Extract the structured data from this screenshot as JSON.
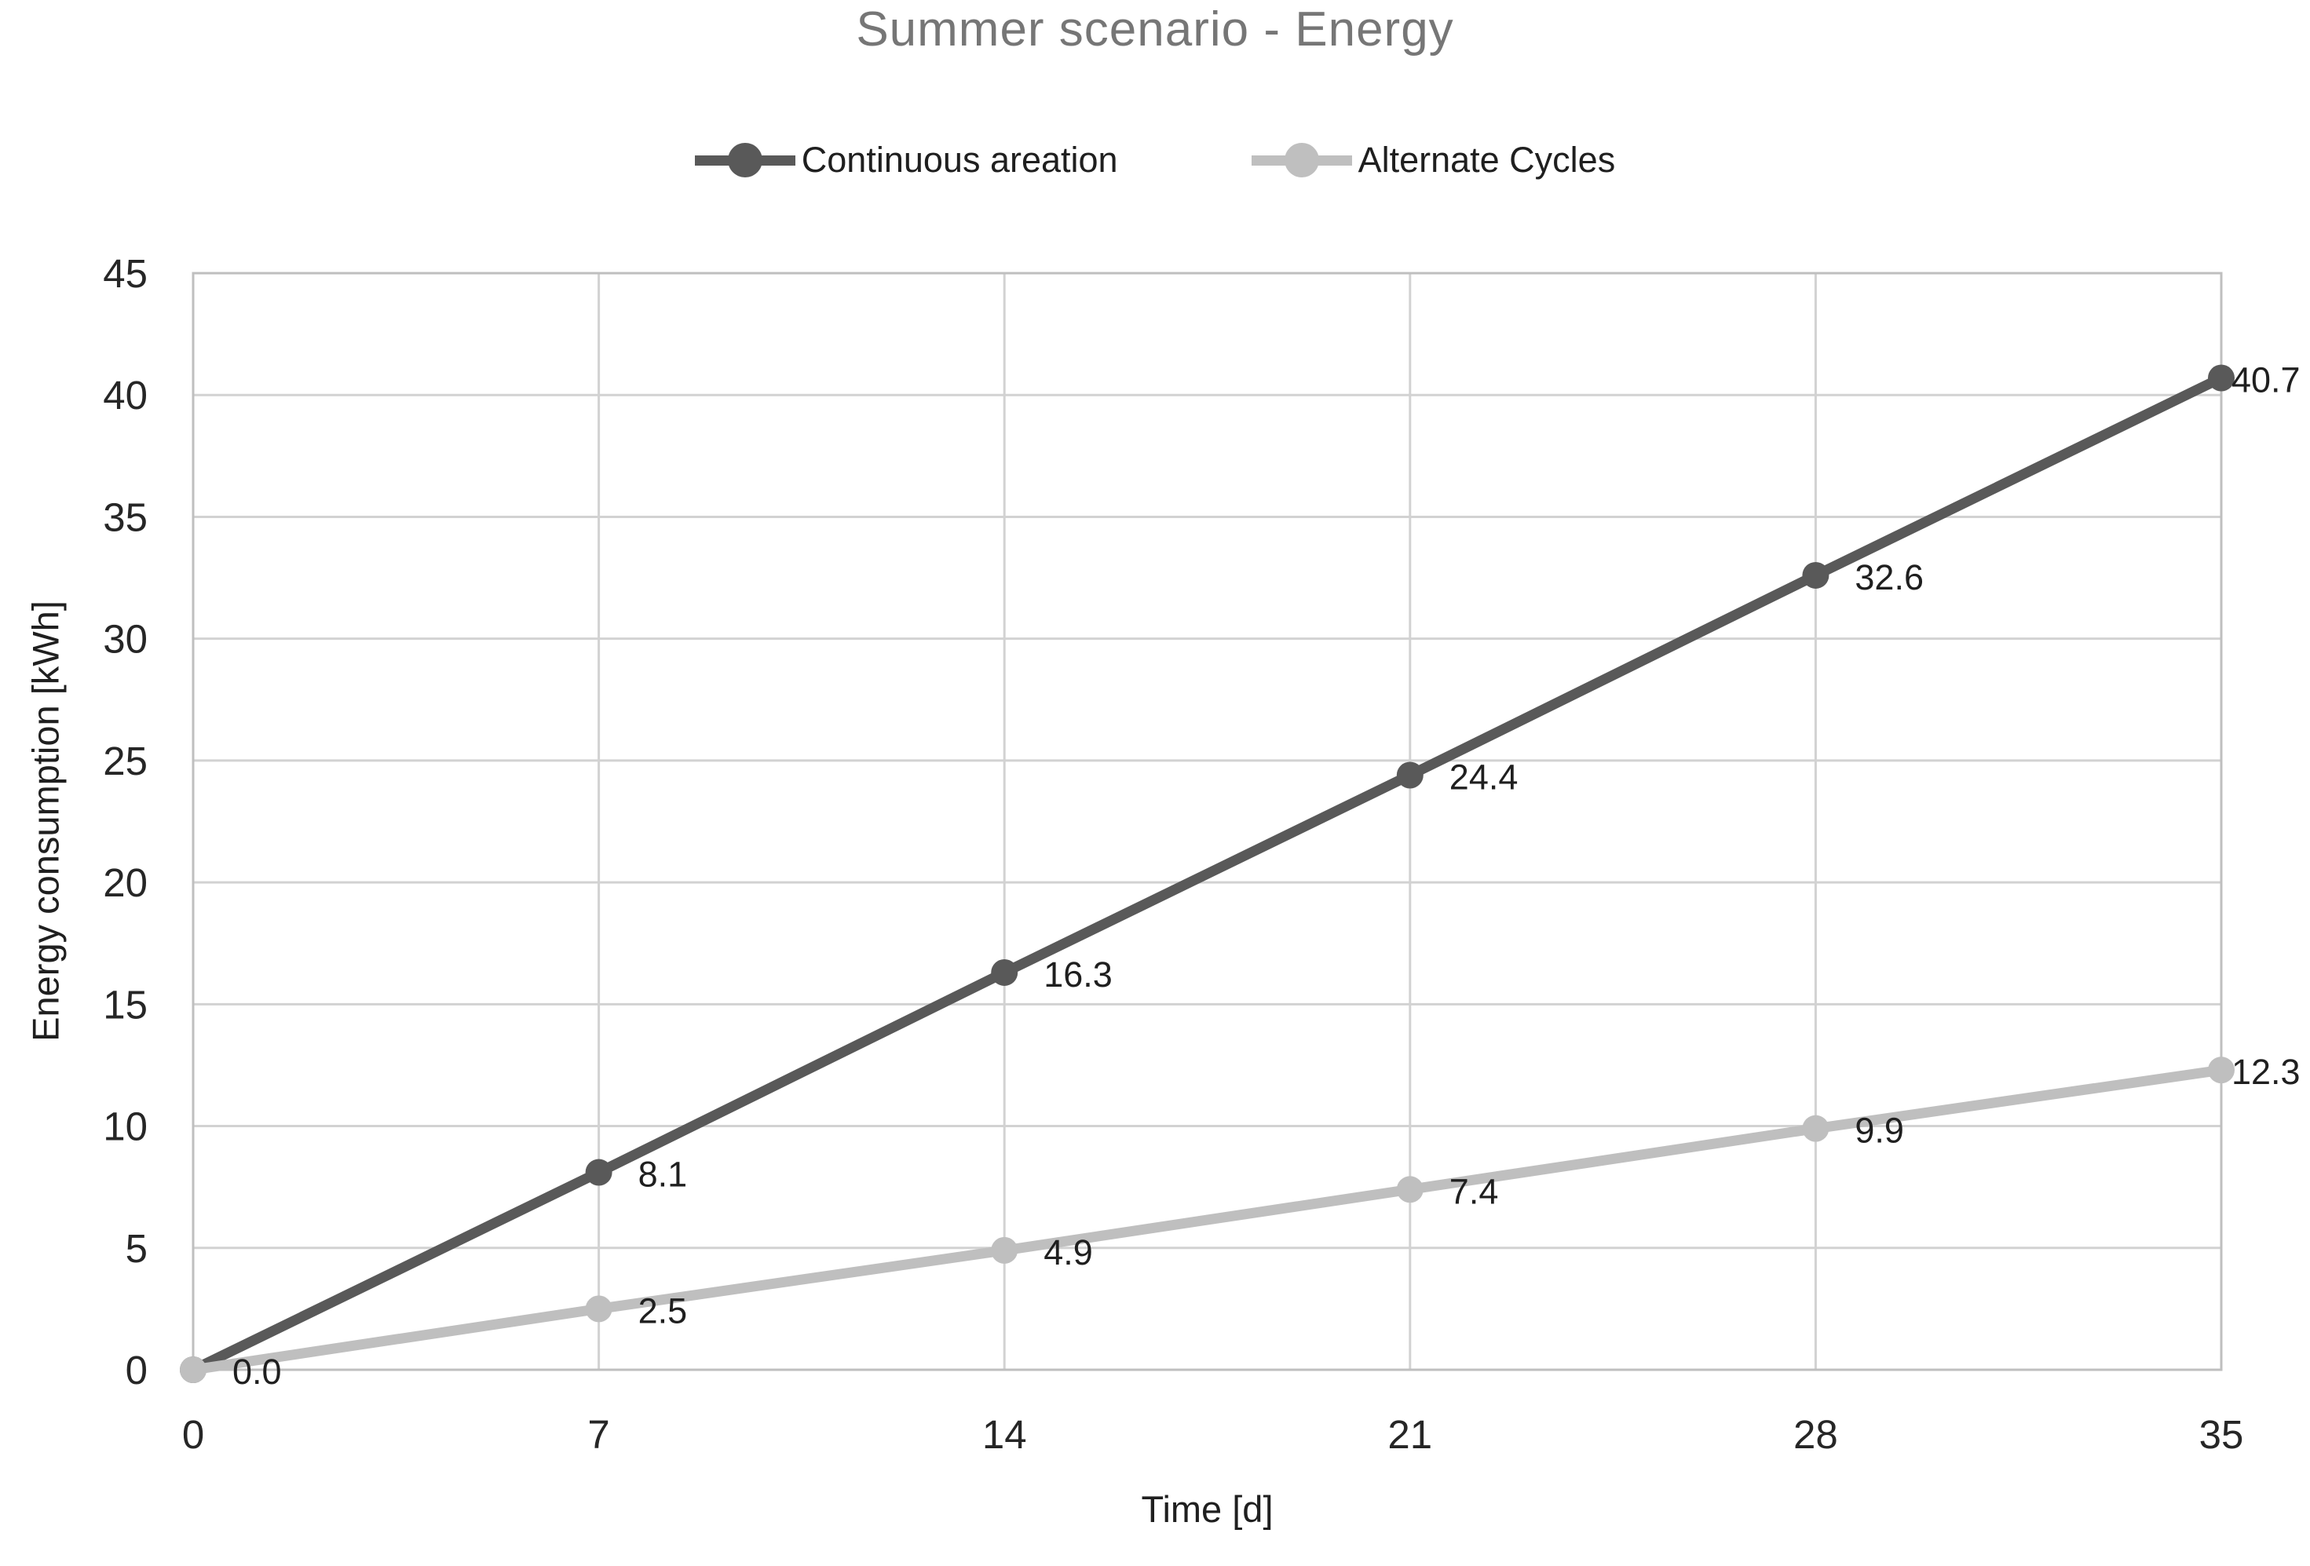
{
  "chart_data": {
    "type": "line",
    "title": "Summer scenario - Energy",
    "xlabel": "Time [d]",
    "ylabel": "Energy consumption [kWh]",
    "x": [
      0,
      7,
      14,
      21,
      28,
      35
    ],
    "xlim": [
      0,
      35
    ],
    "ylim": [
      0,
      45
    ],
    "x_ticks": [
      "0",
      "7",
      "14",
      "21",
      "28",
      "35"
    ],
    "x_tick_values": [
      0,
      7,
      14,
      21,
      28,
      35
    ],
    "y_ticks": [
      "0",
      "5",
      "10",
      "15",
      "20",
      "25",
      "30",
      "35",
      "40",
      "45"
    ],
    "y_tick_values": [
      0,
      5,
      10,
      15,
      20,
      25,
      30,
      35,
      40,
      45
    ],
    "grid": true,
    "legend_position": "top",
    "gridline_color": "#d2d2d2",
    "border_color": "#bfbfbf",
    "series": [
      {
        "name": "Continuous areation",
        "color": "#595959",
        "values": [
          0.0,
          8.1,
          16.3,
          24.4,
          32.6,
          40.7
        ],
        "labels": [
          "0.0",
          "8.1",
          "16.3",
          "24.4",
          "32.6",
          "40.7"
        ]
      },
      {
        "name": "Alternate Cycles",
        "color": "#bfbfbf",
        "values": [
          0.0,
          2.5,
          4.9,
          7.4,
          9.9,
          12.3
        ],
        "labels": [
          "",
          "2.5",
          "4.9",
          "7.4",
          "9.9",
          "12.3"
        ]
      }
    ]
  }
}
